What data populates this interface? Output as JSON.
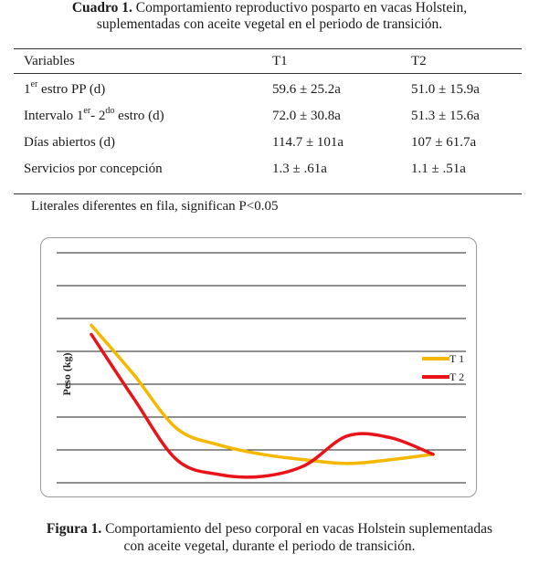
{
  "table": {
    "caption_label": "Cuadro 1.",
    "caption_text_line1": "Comportamiento reproductivo posparto en vacas Holstein,",
    "caption_text_line2": "suplementadas con aceite vegetal en el periodo de transición.",
    "headers": [
      "Variables",
      "T1",
      "T2"
    ],
    "rows": [
      {
        "var_prefix": "1",
        "var_sup": "er",
        "var_rest": " estro PP (d)",
        "t1": "59.6 ± 25.2a",
        "t2": "51.0 ± 15.9a"
      },
      {
        "var_prefix": "Intervalo 1",
        "var_sup": "er",
        "var_mid": "-  2",
        "var_sup2": "do",
        "var_rest": " estro (d)",
        "t1": "72.0 ± 30.8a",
        "t2": "51.3 ± 15.6a"
      },
      {
        "var_prefix": "Días abiertos (d)",
        "t1": "114.7 ± 101a",
        "t2": "107 ± 61.7a"
      },
      {
        "var_prefix": "Servicios por concepción",
        "t1": "1.3 ± .61a",
        "t2": "1.1 ± .51a"
      }
    ],
    "note": "Literales diferentes en fila, significan P<0.05"
  },
  "figure": {
    "caption_label": "Figura 1.",
    "caption_text_line1": "Comportamiento del peso corporal en vacas Holstein suplementadas",
    "caption_text_line2": "con aceite vegetal,  durante el periodo de transición."
  },
  "chart_data": {
    "type": "line",
    "ylabel": "Peso (kg)",
    "xlabel": "",
    "grid": true,
    "legend_position": "right",
    "x": [
      1,
      2,
      3,
      4,
      5,
      6,
      7,
      8,
      9
    ],
    "series": [
      {
        "name": "T 1",
        "color": "#f5b800",
        "values": [
          0.82,
          0.55,
          0.26,
          0.17,
          0.12,
          0.09,
          0.07,
          0.09,
          0.12
        ]
      },
      {
        "name": "T 2",
        "color": "#e8141a",
        "values": [
          0.77,
          0.42,
          0.09,
          0.01,
          0.0,
          0.06,
          0.22,
          0.21,
          0.12
        ]
      }
    ]
  }
}
